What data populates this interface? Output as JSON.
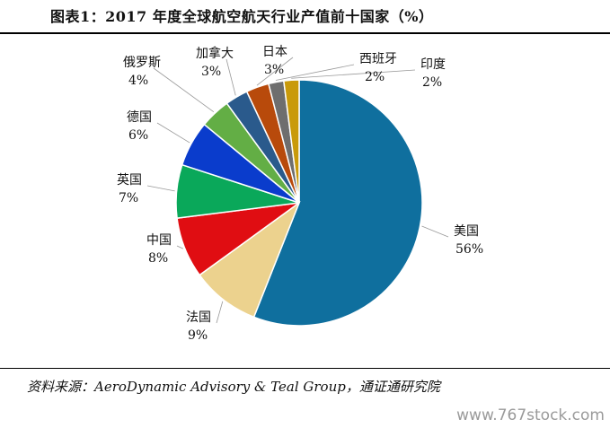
{
  "header": {
    "title": "图表1：2017 年度全球航空航天行业产值前十国家（%）"
  },
  "footer": {
    "source": "资料来源：AeroDynamic Advisory & Teal Group，通证通研究院",
    "watermark": "www.767stock.com"
  },
  "chart_data": {
    "type": "pie",
    "title": "图表1：2017 年度全球航空航天行业产值前十国家（%）",
    "slices": [
      {
        "label": "美国",
        "value": 56,
        "display": "56%",
        "color": "#0f6f9e"
      },
      {
        "label": "法国",
        "value": 9,
        "display": "9%",
        "color": "#ecd28e"
      },
      {
        "label": "中国",
        "value": 8,
        "display": "8%",
        "color": "#e00d12"
      },
      {
        "label": "英国",
        "value": 7,
        "display": "7%",
        "color": "#0aa85a"
      },
      {
        "label": "德国",
        "value": 6,
        "display": "6%",
        "color": "#0a3ccc"
      },
      {
        "label": "俄罗斯",
        "value": 4,
        "display": "4%",
        "color": "#63ae45"
      },
      {
        "label": "加拿大",
        "value": 3,
        "display": "3%",
        "color": "#2a5a8c"
      },
      {
        "label": "日本",
        "value": 3,
        "display": "3%",
        "color": "#b84a0b"
      },
      {
        "label": "西班牙",
        "value": 2,
        "display": "2%",
        "color": "#6e6e6e"
      },
      {
        "label": "印度",
        "value": 2,
        "display": "2%",
        "color": "#c99a0a"
      }
    ]
  }
}
